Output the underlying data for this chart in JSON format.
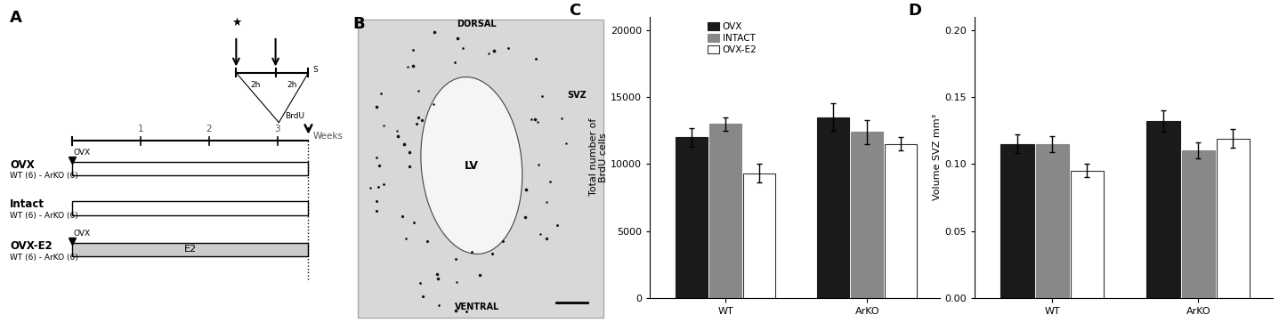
{
  "panel_A": {
    "label": "A",
    "treatments": [
      {
        "name": "OVX",
        "subtitle": "WT (6) - ArKO (6)",
        "has_ovx": true,
        "fill": "white",
        "label_E2": false
      },
      {
        "name": "Intact",
        "subtitle": "WT (6) - ArKO (6)",
        "has_ovx": false,
        "fill": "white",
        "label_E2": false
      },
      {
        "name": "OVX-E2",
        "subtitle": "WT (6) - ArKO (6)",
        "has_ovx": true,
        "fill": "lightgray",
        "label_E2": true
      }
    ]
  },
  "panel_C": {
    "label": "C",
    "ylabel": "Total number of\nBrdU cells",
    "xlabel_groups": [
      "WT",
      "ArKO"
    ],
    "series": [
      "OVX",
      "INTACT",
      "OVX-E2"
    ],
    "colors": [
      "#1a1a1a",
      "#888888",
      "#ffffff"
    ],
    "edgecolors": [
      "#1a1a1a",
      "#888888",
      "#333333"
    ],
    "values": {
      "WT": [
        12000,
        13000,
        9300
      ],
      "ArKO": [
        13500,
        12400,
        11500
      ]
    },
    "errors": {
      "WT": [
        700,
        500,
        700
      ],
      "ArKO": [
        1000,
        900,
        500
      ]
    },
    "ylim": [
      0,
      21000
    ],
    "yticks": [
      0,
      5000,
      10000,
      15000,
      20000
    ]
  },
  "panel_D": {
    "label": "D",
    "ylabel": "Volume SVZ mm³",
    "xlabel_groups": [
      "WT",
      "ArKO"
    ],
    "series": [
      "OVX",
      "INTACT",
      "OVX-E2"
    ],
    "colors": [
      "#1a1a1a",
      "#888888",
      "#ffffff"
    ],
    "edgecolors": [
      "#1a1a1a",
      "#888888",
      "#333333"
    ],
    "values": {
      "WT": [
        0.115,
        0.115,
        0.095
      ],
      "ArKO": [
        0.132,
        0.11,
        0.119
      ]
    },
    "errors": {
      "WT": [
        0.007,
        0.006,
        0.005
      ],
      "ArKO": [
        0.008,
        0.006,
        0.007
      ]
    },
    "ylim": [
      0,
      0.21
    ],
    "yticks": [
      0,
      0.05,
      0.1,
      0.15,
      0.2
    ]
  }
}
